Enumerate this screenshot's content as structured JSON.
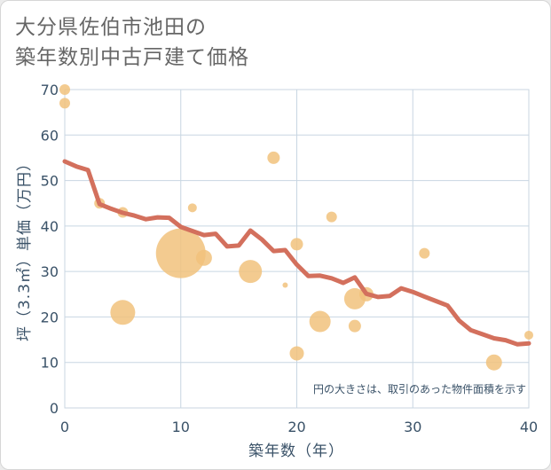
{
  "title_lines": [
    "大分県佐伯市池田の",
    "築年数別中古戸建て価格"
  ],
  "chart_data": {
    "type": "scatter",
    "title": "大分県佐伯市池田の築年数別中古戸建て価格",
    "xlabel": "築年数（年）",
    "ylabel": "坪（3.3㎡）単価（万円）",
    "xlim": [
      0,
      40
    ],
    "ylim": [
      0,
      70
    ],
    "xticks": [
      0,
      10,
      20,
      30,
      40
    ],
    "yticks": [
      0,
      10,
      20,
      30,
      40,
      50,
      60,
      70
    ],
    "grid": true,
    "note": "円の大きさは、取引のあった物件面積を示す",
    "scatter_points": [
      {
        "x": 0,
        "y": 70,
        "size": 6
      },
      {
        "x": 0,
        "y": 67,
        "size": 6
      },
      {
        "x": 3,
        "y": 45,
        "size": 6
      },
      {
        "x": 5,
        "y": 43,
        "size": 6
      },
      {
        "x": 5,
        "y": 21,
        "size": 14
      },
      {
        "x": 10,
        "y": 34,
        "size": 28
      },
      {
        "x": 11,
        "y": 44,
        "size": 5
      },
      {
        "x": 12,
        "y": 33,
        "size": 9
      },
      {
        "x": 16,
        "y": 30,
        "size": 13
      },
      {
        "x": 18,
        "y": 55,
        "size": 7
      },
      {
        "x": 19,
        "y": 27,
        "size": 3
      },
      {
        "x": 20,
        "y": 36,
        "size": 7
      },
      {
        "x": 20,
        "y": 12,
        "size": 8
      },
      {
        "x": 22,
        "y": 19,
        "size": 12
      },
      {
        "x": 23,
        "y": 42,
        "size": 6
      },
      {
        "x": 25,
        "y": 24,
        "size": 12
      },
      {
        "x": 25,
        "y": 18,
        "size": 7
      },
      {
        "x": 26,
        "y": 25,
        "size": 8
      },
      {
        "x": 31,
        "y": 34,
        "size": 6
      },
      {
        "x": 37,
        "y": 10,
        "size": 9
      },
      {
        "x": 40,
        "y": 16,
        "size": 5
      }
    ],
    "trend_line": {
      "x": [
        0,
        1,
        2,
        3,
        4,
        5,
        6,
        7,
        8,
        9,
        10,
        11,
        12,
        13,
        14,
        15,
        16,
        17,
        18,
        19,
        20,
        21,
        22,
        23,
        24,
        25,
        26,
        27,
        28,
        29,
        30,
        31,
        32,
        33,
        34,
        35,
        36,
        37,
        38,
        39,
        40
      ],
      "y": [
        54.2,
        53.1,
        52.3,
        44.8,
        43.8,
        42.9,
        42.3,
        41.5,
        41.9,
        41.8,
        39.8,
        38.9,
        38.0,
        38.3,
        35.5,
        35.7,
        39.0,
        37.0,
        34.5,
        34.7,
        31.5,
        29.0,
        29.1,
        28.5,
        27.5,
        28.7,
        25.1,
        24.4,
        24.6,
        26.3,
        25.5,
        24.5,
        23.5,
        22.5,
        19.2,
        17.1,
        16.2,
        15.3,
        14.9,
        14.0,
        14.2
      ]
    },
    "colors": {
      "bubble": "#f1c27d",
      "trend": "#d3705d",
      "grid": "#c8d6e2",
      "axis_text": "#3a5268"
    }
  }
}
